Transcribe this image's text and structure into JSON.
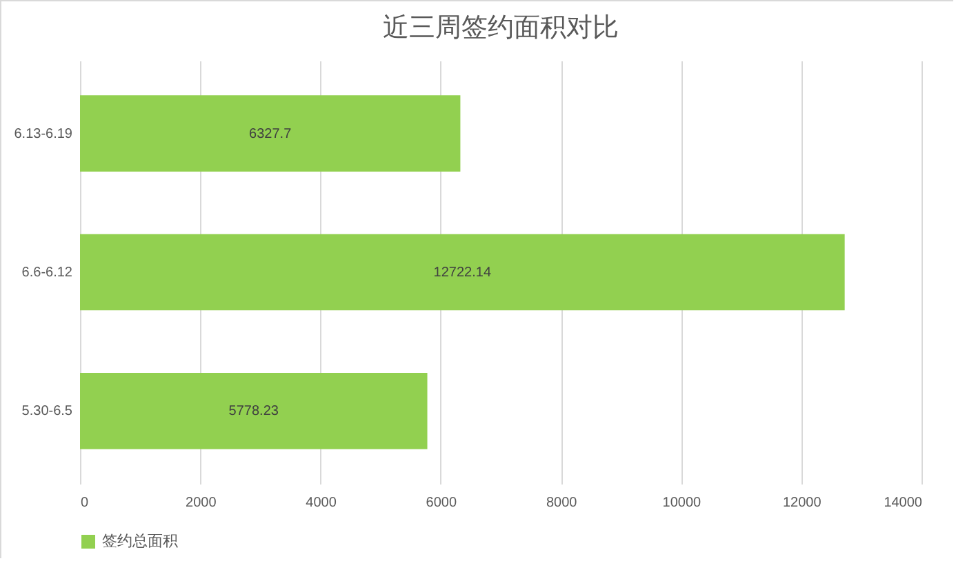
{
  "chart_data": {
    "type": "bar",
    "orientation": "horizontal",
    "title": "近三周签约面积对比",
    "categories": [
      "6.13-6.19",
      "6.6-6.12",
      "5.30-6.5"
    ],
    "series": [
      {
        "name": "签约总面积",
        "color": "#92d050",
        "values": [
          6327.7,
          12722.14,
          5778.23
        ]
      }
    ],
    "xlim": [
      0,
      14000
    ],
    "xticks": [
      0,
      2000,
      4000,
      6000,
      8000,
      10000,
      12000,
      14000
    ],
    "grid": "x",
    "legend": "bottom",
    "data_labels": true
  }
}
